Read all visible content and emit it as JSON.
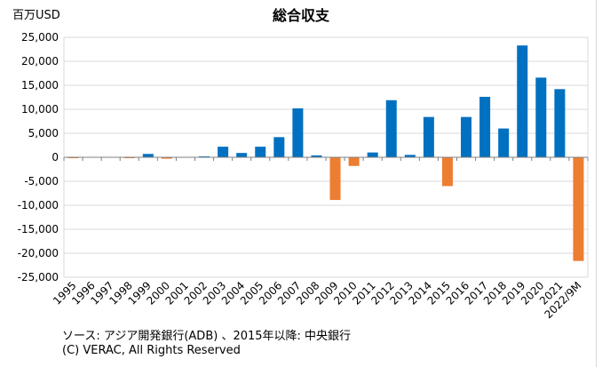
{
  "chart_data": {
    "type": "bar",
    "title": "総合収支",
    "unit_label": "百万USD",
    "categories": [
      "1995",
      "1996",
      "1997",
      "1998",
      "1999",
      "2000",
      "2001",
      "2002",
      "2003",
      "2004",
      "2005",
      "2006",
      "2007",
      "2008",
      "2009",
      "2010",
      "2011",
      "2012",
      "2013",
      "2014",
      "2015",
      "2016",
      "2017",
      "2018",
      "2019",
      "2020",
      "2021",
      "2022/9M"
    ],
    "values": [
      -100,
      0,
      0,
      -150,
      700,
      -300,
      0,
      200,
      2200,
      900,
      2200,
      4200,
      10200,
      400,
      -8900,
      -1800,
      1000,
      11900,
      500,
      8400,
      -6000,
      8400,
      12600,
      6000,
      23300,
      16600,
      14200,
      -21600
    ],
    "ylim": [
      -25000,
      25000
    ],
    "yticks": [
      -25000,
      -20000,
      -15000,
      -10000,
      -5000,
      0,
      5000,
      10000,
      15000,
      20000,
      25000
    ],
    "ytick_labels": [
      "-25,000",
      "-20,000",
      "-15,000",
      "-10,000",
      "-5,000",
      "0",
      "5,000",
      "10,000",
      "15,000",
      "20,000",
      "25,000"
    ],
    "grid": true,
    "colors": {
      "positive": "#0070C0",
      "negative": "#ED7D31",
      "grid": "#D9D9D9"
    },
    "source": "ソース: アジア開発銀行(ADB) 、2015年以降: 中央銀行",
    "copyright": "(C) VERAC, All Rights Reserved"
  }
}
